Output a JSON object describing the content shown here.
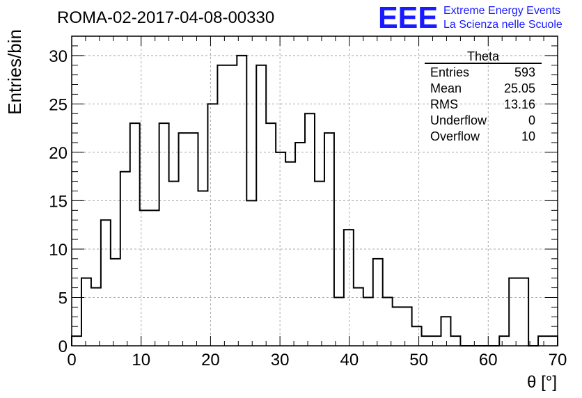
{
  "title": "ROMA-02-2017-04-08-00330",
  "logo": {
    "mark": "EEE",
    "line1": "Extreme Energy Events",
    "line2": "La Scienza nelle Scuole",
    "color": "#1a1aff"
  },
  "stats": {
    "name": "Theta",
    "rows": [
      {
        "label": "Entries",
        "value": "593"
      },
      {
        "label": "Mean",
        "value": "25.05"
      },
      {
        "label": "RMS",
        "value": "13.16"
      },
      {
        "label": "Underflow",
        "value": "0"
      },
      {
        "label": "Overflow",
        "value": "10"
      }
    ]
  },
  "chart_data": {
    "type": "histogram",
    "xlabel": "θ [°]",
    "ylabel": "Entries/bin",
    "xlim": [
      0,
      70
    ],
    "ylim": [
      0,
      32
    ],
    "grid": true,
    "bin_width": 1.4,
    "x_ticks": [
      0,
      10,
      20,
      30,
      40,
      50,
      60,
      70
    ],
    "y_ticks": [
      0,
      5,
      10,
      15,
      20,
      25,
      30
    ],
    "values": [
      1,
      7,
      6,
      13,
      9,
      18,
      23,
      14,
      14,
      23,
      17,
      22,
      22,
      16,
      25,
      29,
      29,
      30,
      15,
      29,
      23,
      20,
      19,
      21,
      24,
      17,
      22,
      5,
      12,
      6,
      5,
      9,
      5,
      4,
      4,
      2,
      1,
      1,
      3,
      1,
      0,
      0,
      0,
      0,
      1,
      7,
      7,
      0,
      1,
      1
    ]
  }
}
